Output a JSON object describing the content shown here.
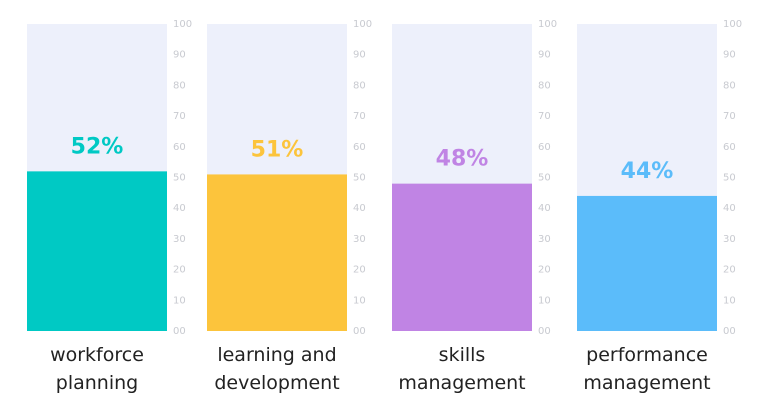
{
  "chart_data": {
    "type": "bar",
    "categories": [
      "workforce planning",
      "learning and development",
      "skills management",
      "performance management"
    ],
    "values": [
      52,
      51,
      48,
      44
    ],
    "value_labels": [
      "52%",
      "51%",
      "48%",
      "44%"
    ],
    "colors": [
      "#00c9c4",
      "#fcc43c",
      "#c084e4",
      "#5bbcfa"
    ],
    "track_color": "#edf0fb",
    "ylim": [
      0,
      100
    ],
    "yticks": [
      {
        "value": 0,
        "label": "00"
      },
      10,
      20,
      30,
      40,
      50,
      60,
      70,
      80,
      90,
      100
    ]
  }
}
